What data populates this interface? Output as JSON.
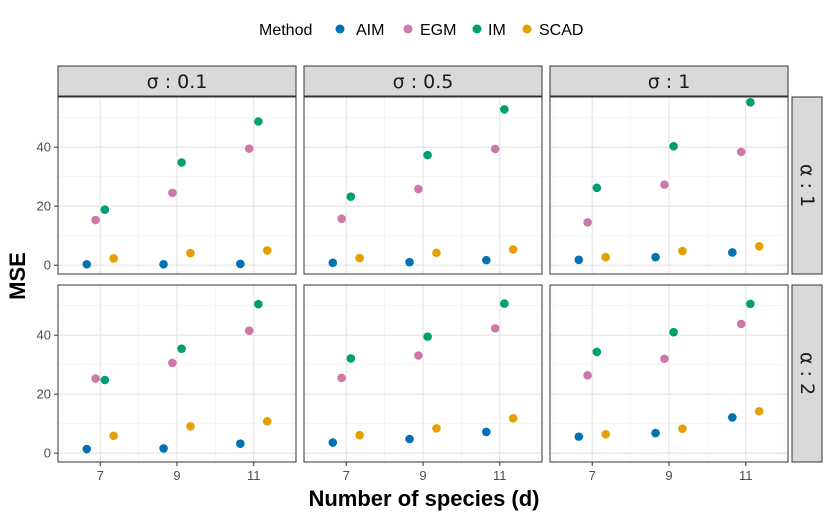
{
  "chart_data": {
    "type": "scatter",
    "xlabel": "Number of species (d)",
    "ylabel": "MSE",
    "ylim": [
      -3,
      57
    ],
    "x_ticks": [
      "7",
      "9",
      "11"
    ],
    "y_ticks": [
      "0",
      "20",
      "40"
    ],
    "legend": {
      "title": "Method",
      "position": "top",
      "entries": [
        {
          "name": "AIM",
          "color": "#0072B2"
        },
        {
          "name": "EGM",
          "color": "#CC79A7"
        },
        {
          "name": "IM",
          "color": "#009E73"
        },
        {
          "name": "SCAD",
          "color": "#E69F00"
        }
      ]
    },
    "col_strips": [
      "σ : 0.1",
      "σ : 0.5",
      "σ : 1"
    ],
    "row_strips": [
      "α : 1",
      "α : 2"
    ],
    "x": [
      7,
      9,
      11
    ],
    "panels": [
      {
        "row": 0,
        "col": 0,
        "series": {
          "AIM": [
            0.3,
            0.3,
            0.4
          ],
          "EGM": [
            15.3,
            24.5,
            39.5
          ],
          "IM": [
            18.8,
            34.8,
            48.7
          ],
          "SCAD": [
            2.3,
            4.1,
            5.0
          ]
        }
      },
      {
        "row": 0,
        "col": 1,
        "series": {
          "AIM": [
            0.8,
            1.0,
            1.7
          ],
          "EGM": [
            15.7,
            25.8,
            39.4
          ],
          "IM": [
            23.2,
            37.3,
            52.8
          ],
          "SCAD": [
            2.4,
            4.2,
            5.3
          ]
        }
      },
      {
        "row": 0,
        "col": 2,
        "series": {
          "AIM": [
            1.8,
            2.7,
            4.3
          ],
          "EGM": [
            14.5,
            27.3,
            38.4
          ],
          "IM": [
            26.2,
            40.3,
            55.2
          ],
          "SCAD": [
            2.7,
            4.8,
            6.4
          ]
        }
      },
      {
        "row": 1,
        "col": 0,
        "series": {
          "AIM": [
            1.4,
            1.6,
            3.2
          ],
          "EGM": [
            25.3,
            30.6,
            41.5
          ],
          "IM": [
            24.8,
            35.4,
            50.5
          ],
          "SCAD": [
            5.9,
            9.1,
            10.8
          ]
        }
      },
      {
        "row": 1,
        "col": 1,
        "series": {
          "AIM": [
            3.6,
            4.8,
            7.2
          ],
          "EGM": [
            25.5,
            33.1,
            42.3
          ],
          "IM": [
            32.1,
            39.5,
            50.7
          ],
          "SCAD": [
            6.1,
            8.4,
            11.8
          ]
        }
      },
      {
        "row": 1,
        "col": 2,
        "series": {
          "AIM": [
            5.6,
            6.8,
            12.1
          ],
          "EGM": [
            26.4,
            32.0,
            43.8
          ],
          "IM": [
            34.3,
            41.0,
            50.6
          ],
          "SCAD": [
            6.4,
            8.3,
            14.2
          ]
        }
      }
    ]
  }
}
